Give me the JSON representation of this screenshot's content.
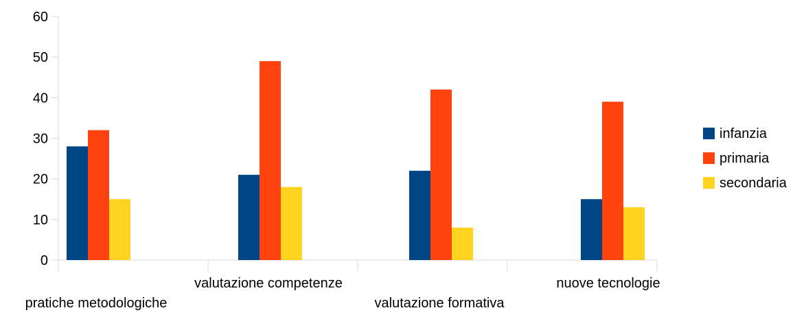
{
  "chart_data": {
    "type": "bar",
    "title": "",
    "xlabel": "",
    "ylabel": "",
    "ylim": [
      0,
      60
    ],
    "yticks": [
      0,
      10,
      20,
      30,
      40,
      50,
      60
    ],
    "grid": false,
    "legend_position": "right",
    "categories": [
      "pratiche metodologiche",
      "valutazione competenze",
      "valutazione formativa",
      "nuove tecnologie"
    ],
    "series": [
      {
        "name": "infanzia",
        "color": "#004586",
        "values": [
          28,
          21,
          22,
          15
        ]
      },
      {
        "name": "primaria",
        "color": "#ff420e",
        "values": [
          32,
          49,
          42,
          39
        ]
      },
      {
        "name": "secondaria",
        "color": "#ffd320",
        "values": [
          15,
          18,
          8,
          13
        ]
      }
    ]
  }
}
